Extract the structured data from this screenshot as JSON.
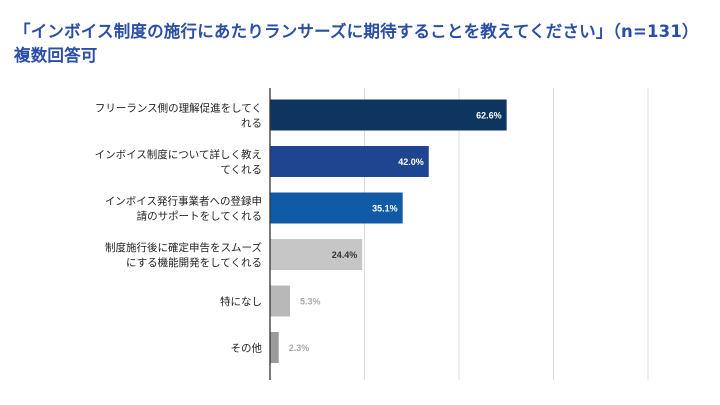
{
  "title": "「インボイス制度の施行にあたりランサーズに期待することを教えてください」（n=131）複数回答可",
  "chart_data": {
    "type": "bar",
    "orientation": "horizontal",
    "title": "「インボイス制度の施行にあたりランサーズに期待することを教えてください」（n=131）複数回答可",
    "categories": [
      [
        "フリーランス側の理解促進をしてく",
        "れる"
      ],
      [
        "インボイス制度について詳しく教え",
        "てくれる"
      ],
      [
        "インボイス発行事業者への登録申",
        "請のサポートをしてくれる"
      ],
      [
        "制度施行後に確定申告をスムーズ",
        "にする機能開発をしてくれる"
      ],
      [
        "特になし"
      ],
      [
        "その他"
      ]
    ],
    "values": [
      62.6,
      42.0,
      35.1,
      24.4,
      5.3,
      2.3
    ],
    "value_labels": [
      "62.6%",
      "42.0%",
      "35.1%",
      "24.4%",
      "5.3%",
      "2.3%"
    ],
    "unit": "%",
    "xlim": [
      0,
      100
    ],
    "grid": true,
    "legend": "none",
    "bar_colors": [
      "#0d3560",
      "#1f4590",
      "#115aa6",
      "#c6c6c6",
      "#b8b8b8",
      "#9a9a9a"
    ],
    "label_colors": [
      "#ffffff",
      "#ffffff",
      "#ffffff",
      "#333333",
      "#aaaaaa",
      "#aaaaaa"
    ]
  }
}
